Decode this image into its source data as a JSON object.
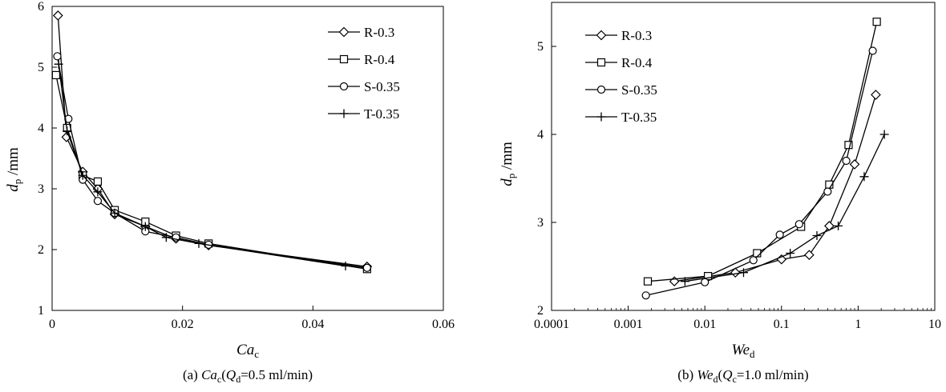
{
  "chart_data": [
    {
      "type": "line",
      "panel": "a",
      "xlim": [
        0,
        0.06
      ],
      "ylim": [
        1,
        6
      ],
      "x_ticks": [
        "0",
        "0.02",
        "0.04",
        "0.06"
      ],
      "y_ticks": [
        "1",
        "2",
        "3",
        "4",
        "5",
        "6"
      ],
      "xlabel": {
        "main": "Ca",
        "sub": "c"
      },
      "ylabel": {
        "main": "d",
        "sub": "p",
        "suffix": " /mm"
      },
      "caption": {
        "prefix": "(a) ",
        "var": "Ca",
        "var_sub": "c",
        "open": "(",
        "q": "Q",
        "q_sub": "d",
        "rest": "=0.5 ml/min)"
      },
      "legend_position": "top-right",
      "grid": false,
      "series": [
        {
          "name": "R-0.3",
          "marker": "diamond",
          "x": [
            0.0009,
            0.0022,
            0.0047,
            0.007,
            0.0096,
            0.0143,
            0.019,
            0.024,
            0.0483
          ],
          "y": [
            5.85,
            3.85,
            3.28,
            3.0,
            2.58,
            2.38,
            2.18,
            2.07,
            1.72
          ]
        },
        {
          "name": "R-0.4",
          "marker": "square",
          "x": [
            0.0006,
            0.0023,
            0.0047,
            0.007,
            0.0096,
            0.0143,
            0.019,
            0.024,
            0.0483
          ],
          "y": [
            4.87,
            4.0,
            3.22,
            3.12,
            2.65,
            2.46,
            2.23,
            2.1,
            1.68
          ]
        },
        {
          "name": "S-0.35",
          "marker": "circle",
          "x": [
            0.0008,
            0.0025,
            0.0047,
            0.007,
            0.0096,
            0.0143,
            0.019,
            0.024,
            0.0483
          ],
          "y": [
            5.18,
            4.15,
            3.15,
            2.8,
            2.6,
            2.3,
            2.2,
            2.08,
            1.7
          ]
        },
        {
          "name": "T-0.35",
          "marker": "plus",
          "x": [
            0.001,
            0.0023,
            0.0047,
            0.007,
            0.0096,
            0.0143,
            0.0175,
            0.0225,
            0.045
          ],
          "y": [
            5.05,
            3.95,
            3.22,
            2.95,
            2.6,
            2.38,
            2.2,
            2.1,
            1.73
          ]
        }
      ]
    },
    {
      "type": "line",
      "panel": "b",
      "x_scale": "log",
      "xlim": [
        0.0001,
        10
      ],
      "ylim": [
        2,
        5.5
      ],
      "x_ticks": [
        "0.0001",
        "0.001",
        "0.01",
        "0.1",
        "1",
        "10"
      ],
      "y_ticks": [
        "2",
        "3",
        "4",
        "5"
      ],
      "xlabel": {
        "main": "We",
        "sub": "d"
      },
      "ylabel": {
        "main": "d",
        "sub": "p",
        "suffix": " /mm"
      },
      "caption": {
        "prefix": "(b) ",
        "var": "We",
        "var_sub": "d",
        "open": "(",
        "q": "Q",
        "q_sub": "c",
        "rest": "=1.0 ml/min)"
      },
      "legend_position": "top-left",
      "grid": false,
      "series": [
        {
          "name": "R-0.3",
          "marker": "diamond",
          "x": [
            0.004,
            0.025,
            0.1,
            0.23,
            0.42,
            0.9,
            1.7
          ],
          "y": [
            2.33,
            2.43,
            2.58,
            2.63,
            2.96,
            3.66,
            4.45
          ]
        },
        {
          "name": "R-0.4",
          "marker": "square",
          "x": [
            0.0018,
            0.011,
            0.048,
            0.18,
            0.42,
            0.75,
            1.75
          ],
          "y": [
            2.33,
            2.39,
            2.65,
            2.95,
            3.43,
            3.88,
            5.28
          ]
        },
        {
          "name": "S-0.35",
          "marker": "circle",
          "x": [
            0.0017,
            0.01,
            0.043,
            0.095,
            0.17,
            0.4,
            0.7,
            1.55
          ],
          "y": [
            2.17,
            2.32,
            2.57,
            2.86,
            2.98,
            3.35,
            3.7,
            4.95
          ]
        },
        {
          "name": "T-0.35",
          "marker": "plus",
          "x": [
            0.0055,
            0.032,
            0.13,
            0.29,
            0.55,
            1.2,
            2.2
          ],
          "y": [
            2.33,
            2.43,
            2.65,
            2.85,
            2.96,
            3.52,
            4.0
          ]
        }
      ]
    }
  ]
}
